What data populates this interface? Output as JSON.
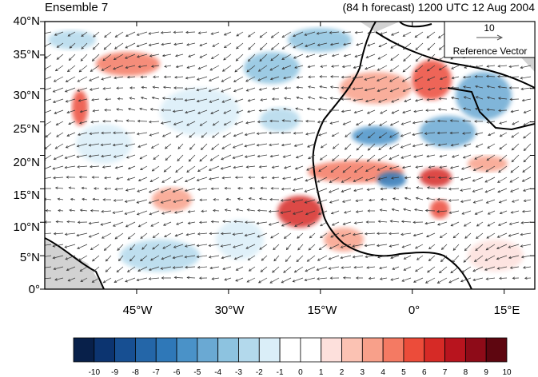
{
  "title_left": "Ensemble 7",
  "title_right": "(84 h forecast) 1200 UTC 12 Aug 2004",
  "map": {
    "lon_range": [
      -60,
      20
    ],
    "lat_range": [
      0,
      40
    ],
    "y_ticks": [
      "0°",
      "5°N",
      "10°N",
      "15°N",
      "20°N",
      "25°N",
      "30°N",
      "35°N",
      "40°N"
    ],
    "x_ticks": [
      "45°W",
      "30°W",
      "15°W",
      "0°",
      "15°E"
    ],
    "x_tick_lons": [
      -45,
      -30,
      -15,
      0,
      15
    ]
  },
  "reference_vector": {
    "magnitude": "10",
    "label": "Reference Vector"
  },
  "colorbar": {
    "labels": [
      "-10",
      "-9",
      "-8",
      "-7",
      "-6",
      "-5",
      "-4",
      "-3",
      "-2",
      "-1",
      "0",
      "1",
      "2",
      "3",
      "4",
      "5",
      "6",
      "7",
      "8",
      "9",
      "10"
    ],
    "colors": [
      "#08204a",
      "#0c3470",
      "#174f92",
      "#2466a8",
      "#2f78b8",
      "#4a92c8",
      "#6aa9d3",
      "#8dc3e0",
      "#b3d9ec",
      "#daeef8",
      "#ffffff",
      "#ffffff",
      "#fde0dc",
      "#fbc2b3",
      "#f8a08a",
      "#f47a63",
      "#ec4c3a",
      "#d62a26",
      "#b8141e",
      "#8e0b18",
      "#5e0610"
    ]
  },
  "colors": {
    "land": "#d2d2d2",
    "coast": "#000000",
    "vector": "#333333"
  }
}
